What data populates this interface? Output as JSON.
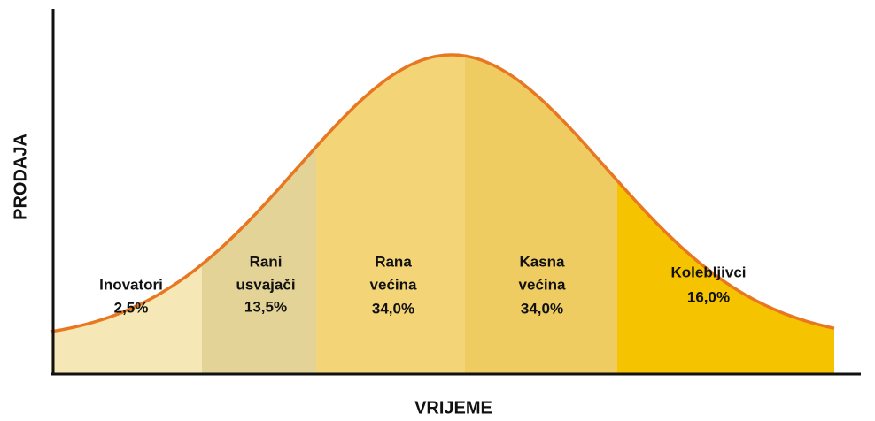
{
  "axes": {
    "y_label": "PRODAJA",
    "x_label": "VRIJEME"
  },
  "segments": [
    {
      "label": [
        "Inovatori"
      ],
      "share": "2,5%"
    },
    {
      "label": [
        "Rani",
        "usvajači"
      ],
      "share": "13,5%"
    },
    {
      "label": [
        "Rana",
        "većina"
      ],
      "share": "34,0%"
    },
    {
      "label": [
        "Kasna",
        "većina"
      ],
      "share": "34,0%"
    },
    {
      "label": [
        "Kolebljivci"
      ],
      "share": "16,0%"
    }
  ]
}
